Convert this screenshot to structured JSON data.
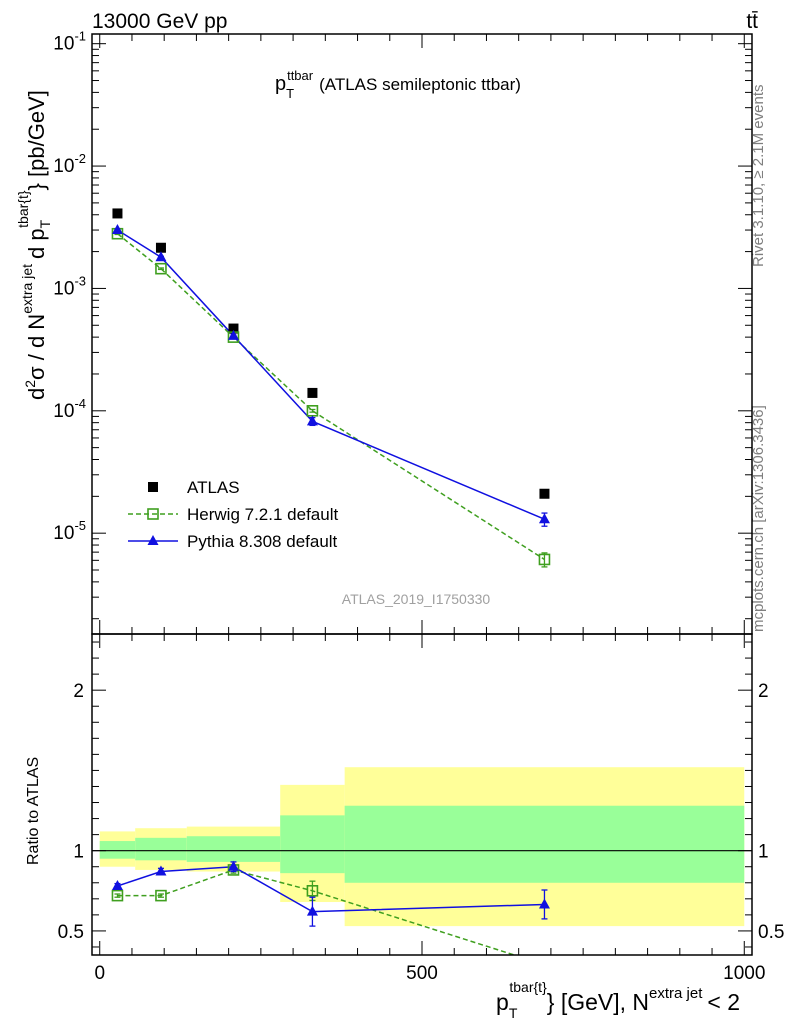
{
  "header": {
    "left_label": "13000 GeV pp",
    "right_label": "tt̄"
  },
  "sidebar": {
    "rivet": "Rivet 3.1.10, ≥ 2.1M events",
    "mcplots": "mcplots.cern.ch [arXiv:1306.3436]"
  },
  "chart_data": [
    {
      "type": "scatter",
      "panel": "main",
      "title_main": "p",
      "title_sub": "T",
      "title_sup": "ttbar",
      "title_rest": "(ATLAS semileptonic ttbar)",
      "watermark": "ATLAS_2019_I1750330",
      "ylabel": "d²σ / d N^{extra jet} d p_T^{tbar{t}} [pb/GeV]",
      "yscale": "log",
      "ylim": [
        1.5e-06,
        0.12
      ],
      "xlim": [
        -12,
        1012
      ],
      "ytick_labels": [
        "10^-5",
        "10^-4",
        "10^-3",
        "10^-2",
        "10^-1"
      ],
      "legend_position": "lower-left",
      "series": [
        {
          "name": "ATLAS",
          "color": "#000000",
          "marker": "filled-square",
          "x": [
            27.5,
            95,
            207.5,
            330,
            690
          ],
          "y": [
            0.0041,
            0.00215,
            0.00047,
            0.00014,
            2.1e-05
          ]
        },
        {
          "name": "Herwig 7.2.1 default",
          "color": "#3f9f1f",
          "marker": "open-square",
          "linestyle": "dashed",
          "x": [
            27.5,
            95,
            207.5,
            330,
            690
          ],
          "y": [
            0.0028,
            0.00145,
            0.0004,
            0.0001,
            6.1e-06
          ],
          "yerr": [
            4e-05,
            2e-05,
            6e-06,
            2.5e-06,
            8e-07
          ]
        },
        {
          "name": "Pythia 8.308 default",
          "color": "#1010e0",
          "marker": "filled-triangle",
          "linestyle": "solid",
          "x": [
            27.5,
            95,
            207.5,
            330,
            690
          ],
          "y": [
            0.003,
            0.0018,
            0.00041,
            8.2e-05,
            1.3e-05
          ],
          "yerr": [
            4e-05,
            3e-05,
            6e-06,
            6e-06,
            1.6e-06
          ]
        }
      ]
    },
    {
      "type": "scatter",
      "panel": "ratio",
      "ylabel": "Ratio to ATLAS",
      "xlabel": "p_T^{tbar{t}} [GeV], N^{extra jet} < 2",
      "ylim": [
        0.35,
        2.35
      ],
      "xlim": [
        -12,
        1012
      ],
      "xticks": [
        0,
        500,
        1000
      ],
      "yticks": [
        0.5,
        1,
        2
      ],
      "reference_line": 1,
      "bands": [
        {
          "x0": 0,
          "x1": 55,
          "green": [
            0.95,
            1.06
          ],
          "yellow": [
            0.9,
            1.12
          ]
        },
        {
          "x0": 55,
          "x1": 135,
          "green": [
            0.94,
            1.08
          ],
          "yellow": [
            0.88,
            1.14
          ]
        },
        {
          "x0": 135,
          "x1": 280,
          "green": [
            0.93,
            1.09
          ],
          "yellow": [
            0.87,
            1.15
          ]
        },
        {
          "x0": 280,
          "x1": 380,
          "green": [
            0.86,
            1.22
          ],
          "yellow": [
            0.68,
            1.41
          ]
        },
        {
          "x0": 380,
          "x1": 1000,
          "green": [
            0.8,
            1.28
          ],
          "yellow": [
            0.53,
            1.52
          ]
        }
      ],
      "series": [
        {
          "name": "Herwig 7.2.1 default",
          "color": "#3f9f1f",
          "marker": "open-square",
          "linestyle": "dashed",
          "x": [
            27.5,
            95,
            207.5,
            330,
            690
          ],
          "y": [
            0.72,
            0.72,
            0.88,
            0.75,
            0.29
          ],
          "yerr": [
            0.01,
            0.01,
            0.02,
            0.06,
            0.04
          ]
        },
        {
          "name": "Pythia 8.308 default",
          "color": "#1010e0",
          "marker": "filled-triangle",
          "linestyle": "solid",
          "x": [
            27.5,
            95,
            207.5,
            330,
            690
          ],
          "y": [
            0.78,
            0.87,
            0.9,
            0.62,
            0.665
          ],
          "yerr": [
            0.015,
            0.02,
            0.03,
            0.09,
            0.09
          ]
        }
      ]
    }
  ]
}
